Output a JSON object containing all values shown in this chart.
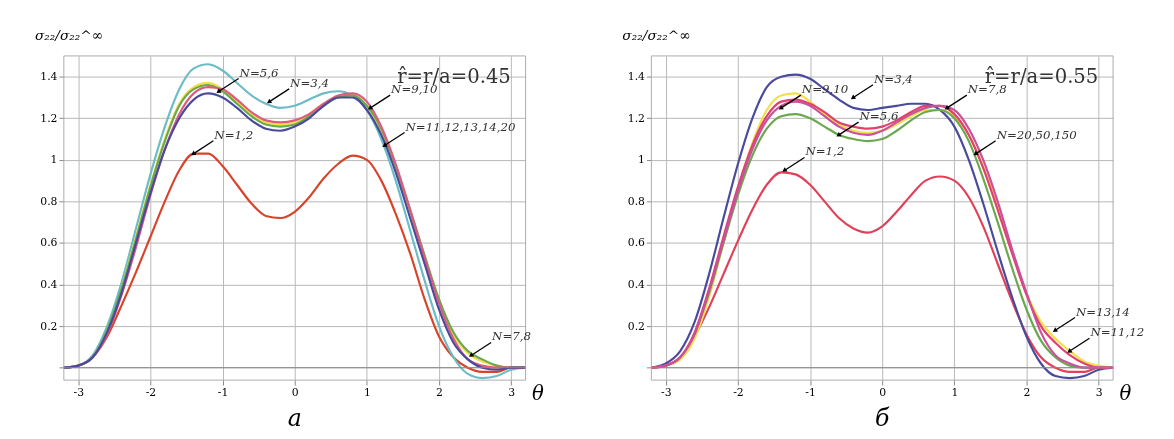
{
  "chart_data": [
    {
      "type": "line",
      "title": "а",
      "xlabel": "θ",
      "ylabel": "σ₂₂/σ₂₂^∞",
      "x": [
        -3.2,
        -3,
        -2.8,
        -2.6,
        -2.4,
        -2.2,
        -2,
        -1.8,
        -1.6,
        -1.4,
        -1.2,
        -1,
        -0.8,
        -0.6,
        -0.4,
        -0.2,
        0,
        0.2,
        0.4,
        0.6,
        0.8,
        1,
        1.2,
        1.4,
        1.6,
        1.8,
        2,
        2.2,
        2.4,
        2.6,
        2.8,
        3,
        3.2
      ],
      "series": [
        {
          "color": "#d8442a",
          "values": [
            0,
            0.01,
            0.05,
            0.15,
            0.3,
            0.46,
            0.63,
            0.8,
            0.95,
            1.03,
            1.03,
            0.97,
            0.88,
            0.79,
            0.73,
            0.72,
            0.75,
            0.82,
            0.91,
            0.98,
            1.02,
            1.0,
            0.9,
            0.74,
            0.55,
            0.33,
            0.15,
            0.05,
            0.0,
            -0.02,
            -0.02,
            0,
            0
          ]
        },
        {
          "color": "#6cbcc6",
          "values": [
            0,
            0.01,
            0.06,
            0.2,
            0.41,
            0.67,
            0.93,
            1.16,
            1.34,
            1.44,
            1.46,
            1.43,
            1.37,
            1.31,
            1.27,
            1.25,
            1.26,
            1.29,
            1.32,
            1.33,
            1.31,
            1.24,
            1.1,
            0.9,
            0.66,
            0.42,
            0.2,
            0.05,
            -0.03,
            -0.05,
            -0.04,
            -0.01,
            0
          ]
        },
        {
          "color": "#f2e04a",
          "values": [
            null,
            null,
            null,
            null,
            0.38,
            0.63,
            0.88,
            1.1,
            1.27,
            1.35,
            1.37,
            1.34,
            1.28,
            1.22,
            1.18,
            1.17,
            1.18,
            1.22,
            1.27,
            1.3,
            1.31,
            1.26,
            1.14,
            0.96,
            0.75,
            0.53,
            0.32,
            0.16,
            0.07,
            0.03,
            0.01,
            0,
            0
          ]
        },
        {
          "color": "#6aa84f",
          "values": [
            0,
            0.01,
            0.05,
            0.18,
            0.38,
            0.62,
            0.87,
            1.09,
            1.26,
            1.34,
            1.36,
            1.33,
            1.27,
            1.21,
            1.17,
            1.16,
            1.17,
            1.21,
            1.26,
            1.3,
            1.31,
            1.26,
            1.15,
            0.97,
            0.76,
            0.54,
            0.33,
            0.17,
            0.08,
            0.04,
            0.01,
            0,
            0
          ]
        },
        {
          "color": "#e05a80",
          "values": [
            0,
            0.01,
            0.05,
            0.16,
            0.35,
            0.58,
            0.83,
            1.05,
            1.22,
            1.32,
            1.35,
            1.34,
            1.29,
            1.23,
            1.19,
            1.18,
            1.19,
            1.22,
            1.27,
            1.31,
            1.32,
            1.28,
            1.16,
            0.98,
            0.76,
            0.53,
            0.31,
            0.14,
            0.04,
            0.01,
            0,
            0,
            0
          ]
        },
        {
          "color": "#4a4a9c",
          "values": [
            0,
            0.01,
            0.05,
            0.17,
            0.36,
            0.6,
            0.84,
            1.05,
            1.2,
            1.29,
            1.32,
            1.3,
            1.25,
            1.19,
            1.15,
            1.14,
            1.16,
            1.2,
            1.26,
            1.3,
            1.3,
            1.24,
            1.12,
            0.94,
            0.72,
            0.5,
            0.28,
            0.12,
            0.04,
            0.0,
            -0.01,
            0,
            0
          ]
        }
      ],
      "xlim": [
        -3.2,
        3.2
      ],
      "ylim": [
        -0.06,
        1.5
      ],
      "xticks": [
        -3,
        -2,
        -1,
        0,
        1,
        2,
        3
      ],
      "yticks": [
        {
          "value": 0,
          "label": null
        },
        0.2,
        0.4,
        0.6,
        0.8,
        1,
        1.2,
        1.4
      ],
      "grid": true,
      "annotations": [
        "r̂=r/a=0.45",
        {
          "text": "N=3,4",
          "x": -0.35,
          "y": 1.28
        },
        {
          "text": "N=5,6",
          "x": -1.05,
          "y": 1.33
        },
        {
          "text": "N=9,10",
          "x": 1.05,
          "y": 1.25
        },
        {
          "text": "N=11,12,13,14,20",
          "x": 1.25,
          "y": 1.07
        },
        {
          "text": "N=1,2",
          "x": -1.4,
          "y": 1.03
        },
        {
          "text": "N=7,8",
          "x": 2.45,
          "y": 0.06
        }
      ]
    },
    {
      "type": "line",
      "title": "б",
      "xlabel": "θ",
      "ylabel": "σ₂₂/σ₂₂^∞",
      "x": [
        -3.2,
        -3,
        -2.8,
        -2.6,
        -2.4,
        -2.2,
        -2,
        -1.8,
        -1.6,
        -1.4,
        -1.2,
        -1,
        -0.8,
        -0.6,
        -0.4,
        -0.2,
        0,
        0.2,
        0.4,
        0.6,
        0.8,
        1,
        1.2,
        1.4,
        1.6,
        1.8,
        2,
        2.2,
        2.4,
        2.6,
        2.8,
        3,
        3.2
      ],
      "series": [
        {
          "color": "#e04058",
          "values": [
            0,
            0.01,
            0.05,
            0.15,
            0.29,
            0.45,
            0.61,
            0.76,
            0.88,
            0.94,
            0.93,
            0.88,
            0.8,
            0.72,
            0.67,
            0.65,
            0.68,
            0.75,
            0.83,
            0.9,
            0.92,
            0.9,
            0.82,
            0.68,
            0.5,
            0.32,
            0.16,
            0.05,
            0.0,
            -0.02,
            -0.02,
            0,
            0
          ]
        },
        {
          "color": "#4a4a9c",
          "values": [
            0,
            0.02,
            0.08,
            0.22,
            0.45,
            0.72,
            0.98,
            1.2,
            1.35,
            1.4,
            1.41,
            1.39,
            1.34,
            1.29,
            1.25,
            1.24,
            1.25,
            1.26,
            1.27,
            1.27,
            1.24,
            1.16,
            1.0,
            0.79,
            0.56,
            0.34,
            0.15,
            0.02,
            -0.04,
            -0.05,
            -0.04,
            -0.01,
            0
          ]
        },
        {
          "color": "#f2e04a",
          "values": [
            0,
            0.01,
            0.04,
            0.14,
            0.34,
            0.6,
            0.86,
            1.08,
            1.24,
            1.31,
            1.32,
            1.28,
            1.22,
            1.17,
            1.14,
            1.13,
            1.14,
            1.17,
            1.21,
            1.24,
            1.24,
            1.21,
            1.12,
            0.97,
            0.78,
            0.56,
            0.36,
            0.22,
            0.14,
            0.08,
            0.03,
            0.01,
            0
          ]
        },
        {
          "color": "#6aa84f",
          "values": [
            null,
            null,
            null,
            0.16,
            0.36,
            0.6,
            0.83,
            1.02,
            1.15,
            1.21,
            1.22,
            1.2,
            1.16,
            1.12,
            1.1,
            1.09,
            1.1,
            1.14,
            1.19,
            1.23,
            1.24,
            1.2,
            1.09,
            0.91,
            0.7,
            0.48,
            0.28,
            0.13,
            0.05,
            0.01,
            0,
            0,
            0
          ]
        },
        {
          "color": "#e2406e",
          "values": [
            0,
            0.01,
            0.05,
            0.17,
            0.38,
            0.63,
            0.87,
            1.07,
            1.21,
            1.28,
            1.29,
            1.27,
            1.23,
            1.18,
            1.16,
            1.15,
            1.16,
            1.19,
            1.23,
            1.26,
            1.26,
            1.22,
            1.12,
            0.96,
            0.76,
            0.55,
            0.35,
            0.2,
            0.12,
            0.06,
            0.02,
            0,
            0
          ]
        },
        {
          "color": "#c8509c",
          "values": [
            0,
            0.01,
            0.05,
            0.16,
            0.37,
            0.61,
            0.85,
            1.05,
            1.19,
            1.26,
            1.28,
            1.26,
            1.21,
            1.16,
            1.13,
            1.12,
            1.14,
            1.18,
            1.22,
            1.25,
            1.26,
            1.24,
            1.15,
            1.0,
            0.8,
            0.57,
            0.36,
            0.17,
            0.06,
            0.02,
            0.0,
            0,
            0
          ]
        }
      ],
      "xlim": [
        -3.2,
        3.2
      ],
      "ylim": [
        -0.06,
        1.5
      ],
      "xticks": [
        -3,
        -2,
        -1,
        0,
        1,
        2,
        3
      ],
      "yticks": [
        {
          "value": 0,
          "label": null
        },
        0.2,
        0.4,
        0.6,
        0.8,
        1,
        1.2,
        1.4
      ],
      "grid": true,
      "annotations": [
        "r̂=r/a=0.55",
        {
          "text": "N=3,4",
          "x": -0.4,
          "y": 1.3
        },
        {
          "text": "N=9,10",
          "x": -1.4,
          "y": 1.25
        },
        {
          "text": "N=5,6",
          "x": -0.6,
          "y": 1.12
        },
        {
          "text": "N=7,8",
          "x": 0.9,
          "y": 1.25
        },
        {
          "text": "N=20,50,150",
          "x": 1.3,
          "y": 1.03
        },
        {
          "text": "N=1,2",
          "x": -1.35,
          "y": 0.95
        },
        {
          "text": "N=13,14",
          "x": 2.4,
          "y": 0.18
        },
        {
          "text": "N=11,12",
          "x": 2.6,
          "y": 0.08
        }
      ]
    }
  ]
}
